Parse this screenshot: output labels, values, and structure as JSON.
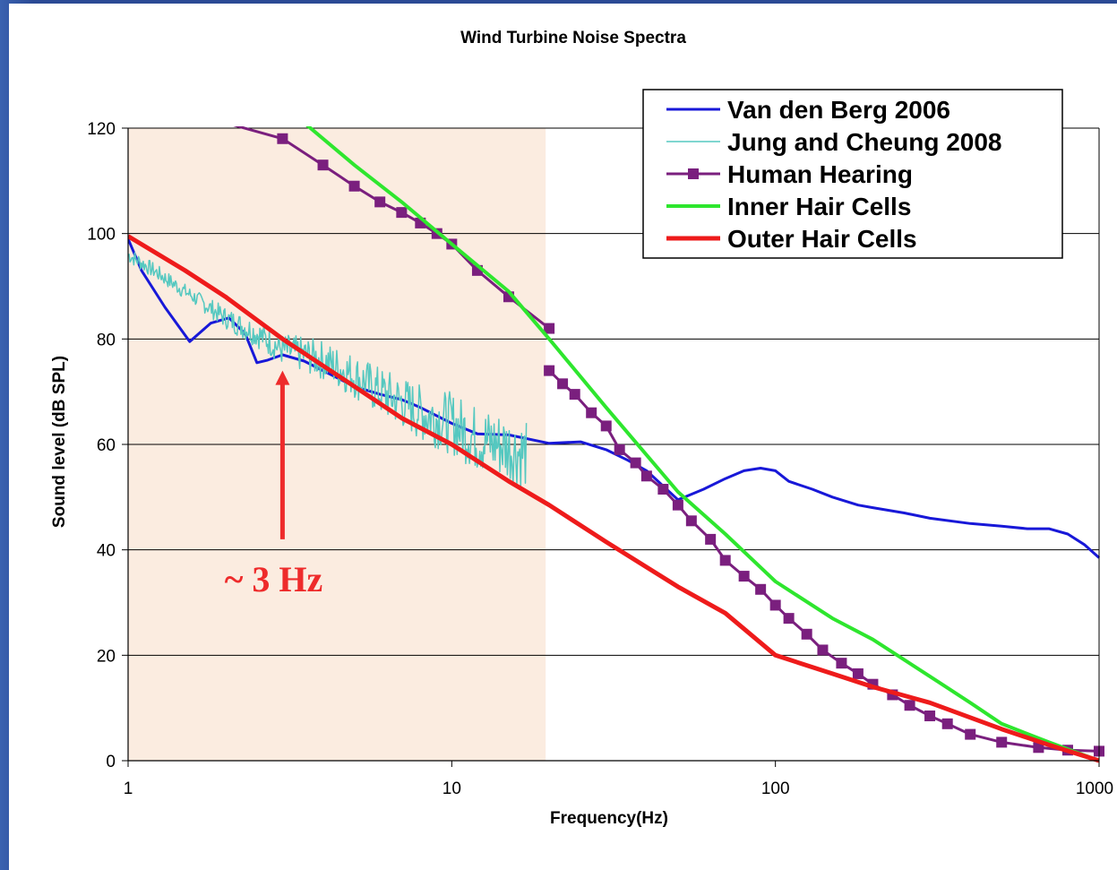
{
  "chart_data": {
    "type": "line",
    "title": "Wind Turbine Noise Spectra",
    "xlabel": "Frequency(Hz)",
    "ylabel": "Sound level (dB SPL)",
    "xscale": "log",
    "xlim": [
      1,
      1000
    ],
    "ylim": [
      0,
      120
    ],
    "x_ticks": [
      1,
      10,
      100,
      1000
    ],
    "y_ticks": [
      0,
      20,
      40,
      60,
      80,
      100,
      120
    ],
    "x_tick_labels": [
      "1",
      "10",
      "100",
      "1000"
    ],
    "y_tick_labels": [
      "0",
      "20",
      "40",
      "60",
      "80",
      "100",
      "120"
    ],
    "grid": "horizontal",
    "legend_position": "top-right",
    "shaded_region": {
      "x": [
        1,
        19.5
      ],
      "color": "#fbece0"
    },
    "annotation": {
      "text": "~ 3 Hz",
      "x": 3,
      "color": "#ee2b2b",
      "arrow_to_y": 74,
      "arrow_from_y": 42
    },
    "series": [
      {
        "name": "Van den Berg 2006",
        "color": "#1818d8",
        "line_width": 3,
        "marker": "none",
        "x": [
          1,
          1.1,
          1.3,
          1.55,
          1.8,
          2.05,
          2.3,
          2.5,
          2.7,
          3,
          3.5,
          4,
          5,
          6,
          7,
          8,
          10,
          12,
          15,
          20,
          25,
          30,
          35,
          40,
          50,
          60,
          70,
          80,
          90,
          100,
          110,
          130,
          150,
          180,
          200,
          250,
          300,
          400,
          500,
          600,
          700,
          800,
          900,
          1000
        ],
        "y": [
          99,
          93,
          86,
          79.5,
          83,
          84,
          81,
          75.5,
          76,
          77,
          75.8,
          74,
          71,
          69.5,
          68.5,
          67,
          64,
          62,
          61.8,
          60.2,
          60.5,
          59,
          57,
          55,
          49.5,
          51.5,
          53.5,
          55,
          55.5,
          55,
          53,
          51.5,
          50,
          48.5,
          48,
          47,
          46,
          45,
          44.5,
          44,
          44,
          43,
          41,
          38.5
        ]
      },
      {
        "name": "Jung and Cheung 2008",
        "color": "#55c8c0",
        "line_width": 1.5,
        "marker": "none",
        "noisy": true,
        "x": [
          1,
          1.2,
          1.5,
          2,
          2.5,
          3,
          3.5,
          4,
          5,
          6,
          7,
          8,
          10,
          12,
          14,
          17
        ],
        "y": [
          96,
          93,
          89,
          84,
          81,
          78,
          77,
          76,
          73,
          70,
          68,
          66,
          64,
          61,
          60,
          58
        ]
      },
      {
        "name": "Human Hearing",
        "color": "#7a1f7e",
        "line_width": 3,
        "marker": "square",
        "segments": [
          {
            "x": [
              2,
              3,
              4,
              5,
              6,
              7,
              8,
              9,
              10,
              12,
              15,
              20
            ],
            "y": [
              121,
              118,
              113,
              109,
              106,
              104,
              102,
              100,
              98,
              93,
              88,
              82
            ]
          },
          {
            "x": [
              20,
              22,
              24,
              27,
              30,
              33,
              37,
              40,
              45,
              50,
              55,
              63,
              70,
              80,
              90,
              100,
              110,
              125,
              140,
              160,
              180,
              200,
              230,
              260,
              300,
              340,
              400,
              500,
              650,
              800,
              1000
            ],
            "y": [
              74,
              71.5,
              69.5,
              66,
              63.5,
              59,
              56.5,
              54,
              51.5,
              48.5,
              45.5,
              42,
              38,
              35,
              32.5,
              29.5,
              27,
              24,
              21,
              18.5,
              16.5,
              14.5,
              12.5,
              10.5,
              8.5,
              7,
              5,
              3.5,
              2.5,
              2,
              1.8
            ]
          }
        ]
      },
      {
        "name": "Inner Hair Cells",
        "color": "#2ee62e",
        "line_width": 4,
        "marker": "none",
        "x": [
          3.5,
          5,
          7,
          10,
          15,
          20,
          30,
          50,
          70,
          100,
          150,
          200,
          300,
          400,
          500,
          700,
          1000
        ],
        "y": [
          121,
          113,
          106,
          98,
          89,
          80,
          67,
          51,
          43,
          34,
          27,
          23,
          16,
          11,
          7,
          3.5,
          0
        ]
      },
      {
        "name": "Outer Hair Cells",
        "color": "#ee1b1b",
        "line_width": 5,
        "marker": "none",
        "x": [
          1,
          1.5,
          2,
          3,
          5,
          7,
          10,
          15,
          20,
          30,
          50,
          70,
          100,
          150,
          200,
          300,
          500,
          700,
          1000
        ],
        "y": [
          99.5,
          93,
          88,
          80,
          71,
          65,
          60,
          53,
          48.5,
          41.5,
          33,
          28,
          20,
          16.5,
          14,
          11,
          6,
          3,
          0
        ]
      }
    ]
  }
}
